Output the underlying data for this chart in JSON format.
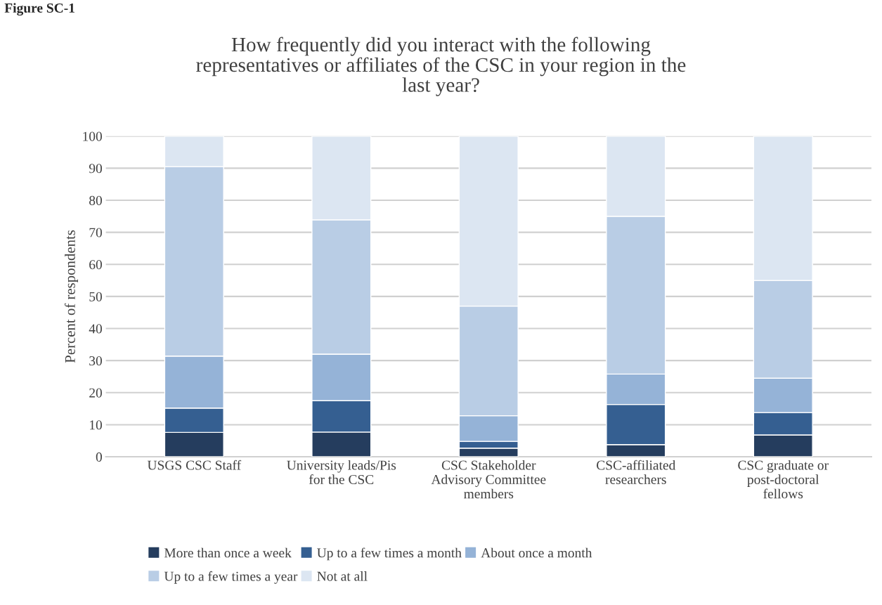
{
  "chart_data": {
    "type": "bar",
    "stacked": true,
    "title": "How frequently did you interact with the following\nrepresentatives or affiliates of the CSC in your region in the\nlast year?",
    "ylabel": "Percent of respondents",
    "annotations": [
      "Figure SC-1"
    ],
    "categories": [
      "USGS CSC Staff",
      "University leads/Pis\nfor the CSC",
      "CSC Stakeholder\nAdvisory Committee\nmembers",
      "CSC-affiliated\nresearchers",
      "CSC graduate or\npost-doctoral\nfellows"
    ],
    "series": [
      {
        "name": "More than once a week",
        "color": "#253d5e",
        "values": [
          7.6,
          7.7,
          2.7,
          3.8,
          6.8
        ]
      },
      {
        "name": "Up to a few times a month",
        "color": "#355f91",
        "values": [
          7.6,
          9.8,
          2.1,
          12.5,
          7.0
        ]
      },
      {
        "name": "About once a month",
        "color": "#95b3d7",
        "values": [
          16.2,
          14.5,
          8.0,
          9.5,
          10.7
        ]
      },
      {
        "name": "Up to a few times a year",
        "color": "#b9cde5",
        "values": [
          59.1,
          41.9,
          34.2,
          49.2,
          30.5
        ]
      },
      {
        "name": "Not at all",
        "color": "#dce6f2",
        "values": [
          9.5,
          26.1,
          53.0,
          25.0,
          45.0
        ]
      }
    ],
    "ylim": [
      0,
      100
    ],
    "yticks": [
      0,
      10,
      20,
      30,
      40,
      50,
      60,
      70,
      80,
      90,
      100
    ],
    "grid": "y",
    "legend": "bottom"
  }
}
